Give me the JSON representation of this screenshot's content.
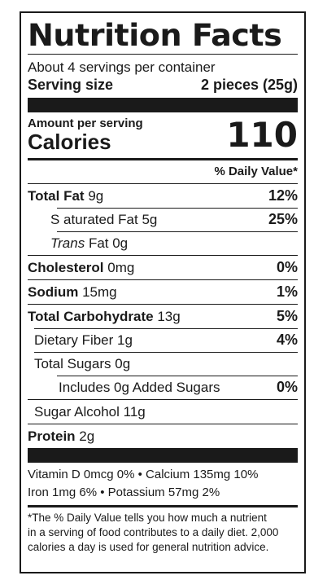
{
  "title": "Nutrition Facts",
  "servings_per_container": "About 4 servings per container",
  "serving_size": {
    "label": "Serving size",
    "value": "2 pieces (25g)"
  },
  "amount_per_serving": "Amount per serving",
  "calories": {
    "label": "Calories",
    "value": "110"
  },
  "daily_value_header": "% Daily Value*",
  "nutrients": [
    {
      "name": "Total Fat",
      "amount": "9g",
      "dv": "12%"
    },
    {
      "name": "S aturated Fat",
      "amount": "5g",
      "dv": "25%"
    },
    {
      "name": "Trans",
      "amount": "Fat 0g",
      "dv": ""
    },
    {
      "name": "Cholesterol",
      "amount": "0mg",
      "dv": "0%"
    },
    {
      "name": "Sodium",
      "amount": "15mg",
      "dv": "1%"
    },
    {
      "name": "Total Carbohydrate",
      "amount": "13g",
      "dv": "5%"
    },
    {
      "name": "Dietary Fiber",
      "amount": "1g",
      "dv": "4%"
    },
    {
      "name": "Total Sugars",
      "amount": "0g",
      "dv": ""
    },
    {
      "name": "Includes 0g Added Sugars",
      "amount": "",
      "dv": "0%"
    },
    {
      "name": "Sugar Alcohol",
      "amount": "11g",
      "dv": ""
    },
    {
      "name": "Protein",
      "amount": "2g",
      "dv": ""
    }
  ],
  "vitamins": [
    "Vitamin D 0mcg 0% • Calcium 135mg 10%",
    "Iron 1mg 6% • Potassium 57mg 2%"
  ],
  "footnote": [
    "*The % Daily Value tells you how much a nutrient",
    "in a serving of food contributes to a daily diet. 2,000",
    "calories a day is used for general nutrition advice."
  ]
}
